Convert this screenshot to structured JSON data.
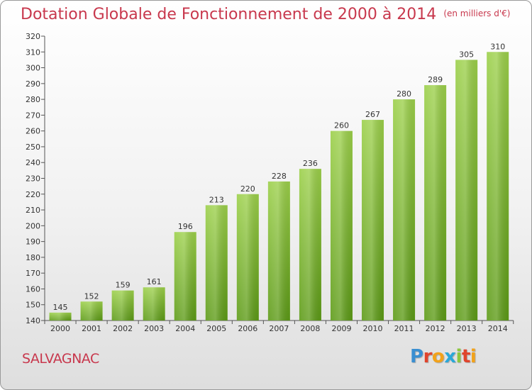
{
  "header": {
    "title": "Dotation Globale de Fonctionnement de 2000 à 2014",
    "unit": "(en milliers d'€)"
  },
  "footer": {
    "town": "SALVAGNAC",
    "logo": "Proxiti"
  },
  "colors": {
    "title": "#c8384d",
    "bar_top": "#9cd04a",
    "bar_bottom": "#5c9a16",
    "logo_letters": [
      "#3a8fd1",
      "#e0442c",
      "#f2a21a",
      "#2aa8d8",
      "#8cc63f",
      "#e0442c",
      "#f2a21a"
    ]
  },
  "chart_data": {
    "type": "bar",
    "categories": [
      "2000",
      "2001",
      "2002",
      "2003",
      "2004",
      "2005",
      "2006",
      "2007",
      "2008",
      "2009",
      "2010",
      "2011",
      "2012",
      "2013",
      "2014"
    ],
    "values": [
      145,
      152,
      159,
      161,
      196,
      213,
      220,
      228,
      236,
      260,
      267,
      280,
      289,
      305,
      310
    ],
    "ylim": [
      140,
      320
    ],
    "yticks": [
      140,
      150,
      160,
      170,
      180,
      190,
      200,
      210,
      220,
      230,
      240,
      250,
      260,
      270,
      280,
      290,
      300,
      310,
      320
    ],
    "grid": false,
    "data_labels": true
  }
}
